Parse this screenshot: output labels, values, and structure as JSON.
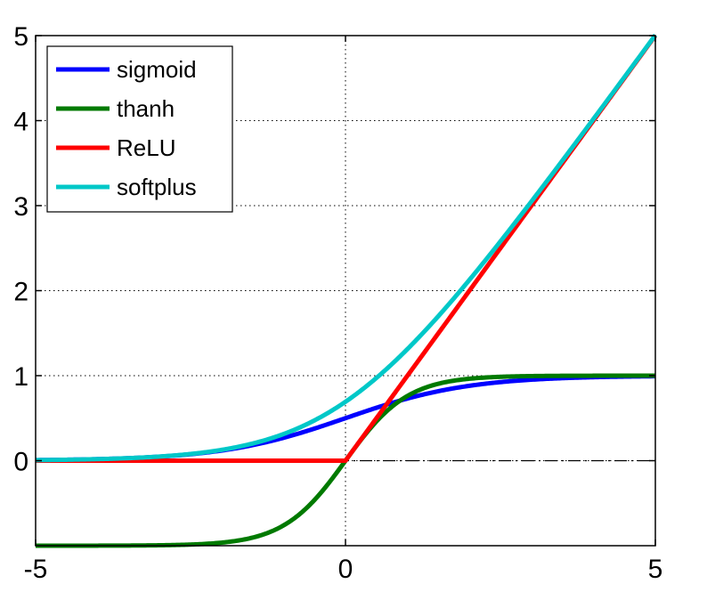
{
  "chart_data": {
    "type": "line",
    "title": "",
    "xlabel": "",
    "ylabel": "",
    "xlim": [
      -5,
      5
    ],
    "ylim": [
      -1,
      5
    ],
    "xticks": [
      -5,
      0,
      5
    ],
    "yticks": [
      0,
      1,
      2,
      3,
      4,
      5
    ],
    "grid": true,
    "legend_position": "top-left",
    "x": [
      -5,
      -4,
      -3,
      -2.5,
      -2,
      -1.5,
      -1,
      -0.5,
      0,
      0.5,
      0.75,
      1,
      1.5,
      2,
      2.5,
      3,
      3.5,
      4,
      4.5,
      5
    ],
    "series": [
      {
        "name": "sigmoid",
        "color": "#0000ff",
        "values": [
          0.007,
          0.018,
          0.047,
          0.076,
          0.119,
          0.182,
          0.269,
          0.378,
          0.5,
          0.622,
          0.679,
          0.731,
          0.818,
          0.881,
          0.924,
          0.953,
          0.971,
          0.982,
          0.989,
          0.993
        ]
      },
      {
        "name": "thanh",
        "color": "#007a00",
        "values": [
          -1.0,
          -0.999,
          -0.995,
          -0.987,
          -0.964,
          -0.905,
          -0.762,
          -0.462,
          0.0,
          0.462,
          0.635,
          0.762,
          0.905,
          0.964,
          0.987,
          0.995,
          0.998,
          0.999,
          1.0,
          1.0
        ]
      },
      {
        "name": "ReLU",
        "color": "#ff0000",
        "values": [
          0,
          0,
          0,
          0,
          0,
          0,
          0,
          0,
          0,
          0.5,
          0.75,
          1,
          1.5,
          2,
          2.5,
          3,
          3.5,
          4,
          4.5,
          5
        ]
      },
      {
        "name": "softplus",
        "color": "#00c8c8",
        "values": [
          0.007,
          0.018,
          0.049,
          0.079,
          0.127,
          0.201,
          0.313,
          0.474,
          0.693,
          0.974,
          1.131,
          1.313,
          1.701,
          2.127,
          2.579,
          3.049,
          3.53,
          4.018,
          4.511,
          5.007
        ]
      }
    ],
    "annotations": [
      {
        "type": "hline",
        "y": 0,
        "style": "dash-dot",
        "color": "#000000"
      }
    ]
  }
}
